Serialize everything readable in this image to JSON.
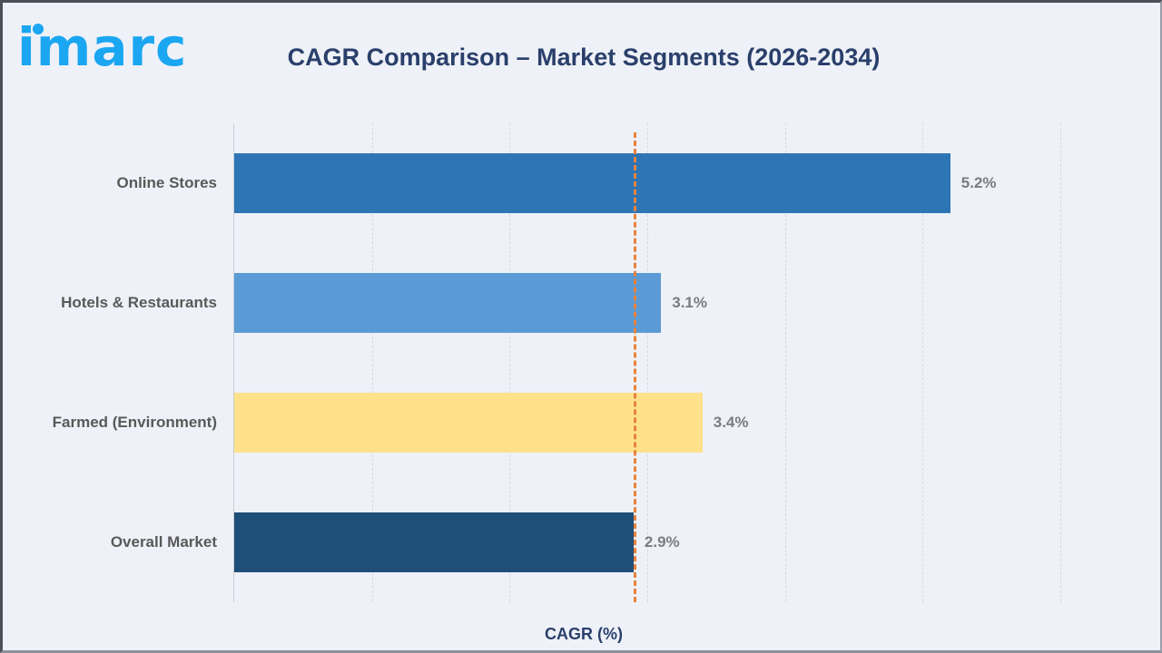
{
  "header": {
    "logo_text": "imarc",
    "title": "CAGR Comparison – Market Segments (2026-2034)"
  },
  "chart_data": {
    "type": "bar",
    "orientation": "horizontal",
    "title": "CAGR Comparison – Market Segments (2026-2034)",
    "categories": [
      "Online Stores",
      "Hotels & Restaurants",
      "Farmed (Environment)",
      "Overall Market"
    ],
    "values": [
      5.2,
      3.1,
      3.4,
      2.9
    ],
    "value_labels": [
      "5.2%",
      "3.1%",
      "3.4%",
      "2.9%"
    ],
    "bar_colors": [
      "#2e75b6",
      "#5b9bd5",
      "#ffe18c",
      "#1f4e79"
    ],
    "xlabel": "CAGR (%)",
    "xlim": [
      0,
      6.5
    ],
    "grid_step": 1,
    "grid": "vertical-dashed",
    "legend": "none",
    "reference_line": {
      "value": 2.9,
      "color": "#e8823c",
      "style": "dashed"
    }
  },
  "colors": {
    "background": "#eef1f7",
    "logo_blue": "#1ba6f2",
    "title_navy": "#2a3f6b",
    "category_label": "#595959",
    "value_label": "#797c82",
    "gridline": "#d6dae1",
    "axis_line": "#c8cdd5"
  }
}
